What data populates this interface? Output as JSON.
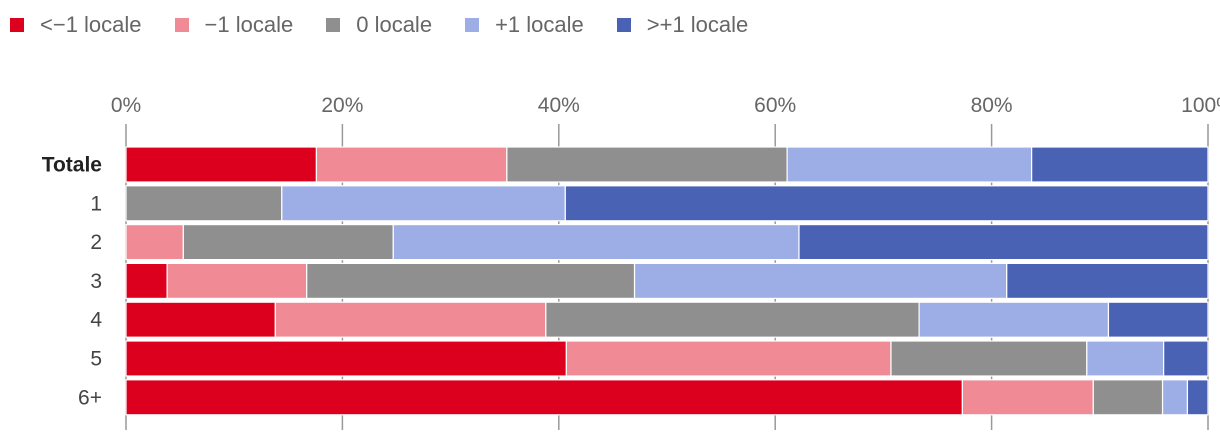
{
  "chart_data": {
    "type": "stacked-bar-horizontal",
    "title": "",
    "xlabel": "",
    "ylabel": "",
    "xlim": [
      0,
      100
    ],
    "x_ticks": [
      "0%",
      "20%",
      "40%",
      "60%",
      "80%",
      "100%"
    ],
    "x_tick_values": [
      0,
      20,
      40,
      60,
      80,
      100
    ],
    "categories": [
      "Totale",
      "1",
      "2",
      "3",
      "4",
      "5",
      "6+"
    ],
    "bold_categories": [
      "Totale"
    ],
    "series": [
      {
        "name": "<−1 locale",
        "color": "#dc001e",
        "values": [
          17.6,
          0,
          0,
          3.8,
          13.8,
          40.7,
          77.3
        ]
      },
      {
        "name": "−1 locale",
        "color": "#f08a95",
        "values": [
          17.6,
          0,
          5.3,
          12.9,
          25.0,
          30.0,
          12.1
        ]
      },
      {
        "name": "0 locale",
        "color": "#8f8f8f",
        "values": [
          25.9,
          14.4,
          19.4,
          30.3,
          34.5,
          18.1,
          6.4
        ]
      },
      {
        "name": "+1 locale",
        "color": "#9dade5",
        "values": [
          22.6,
          26.2,
          37.5,
          34.4,
          17.5,
          7.1,
          2.3
        ]
      },
      {
        "name": ">+1 locale",
        "color": "#4a62b4",
        "values": [
          16.3,
          59.4,
          37.8,
          18.6,
          9.2,
          4.1,
          1.9
        ]
      }
    ],
    "legend_position": "top-left",
    "grid": true
  }
}
